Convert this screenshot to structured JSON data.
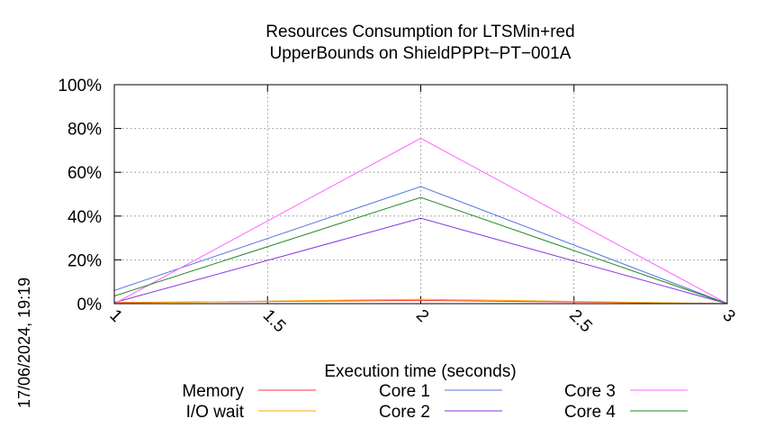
{
  "chart_data": {
    "type": "line",
    "title": [
      "Resources Consumption for LTSMin+red",
      "UpperBounds on ShieldPPPt−PT−001A"
    ],
    "xlabel": "Execution time (seconds)",
    "ylabel": "",
    "xlim": [
      1,
      3
    ],
    "ylim": [
      0,
      100
    ],
    "x_ticks": [
      "1",
      "1.5",
      "2",
      "2.5",
      "3"
    ],
    "y_ticks": [
      "0%",
      "20%",
      "40%",
      "60%",
      "80%",
      "100%"
    ],
    "x": [
      1,
      2,
      3
    ],
    "grid": true,
    "legend_position": "bottom",
    "timestamp": "17/06/2024, 19:19",
    "series": [
      {
        "name": "Memory",
        "color": "#ff3333",
        "values": [
          0.5,
          1.5,
          0
        ]
      },
      {
        "name": "I/O wait",
        "color": "#ffaa00",
        "values": [
          0.3,
          2.0,
          0
        ]
      },
      {
        "name": "Core 1",
        "color": "#5577dd",
        "values": [
          6,
          53.5,
          0
        ]
      },
      {
        "name": "Core 2",
        "color": "#8833dd",
        "values": [
          0.5,
          39,
          0
        ]
      },
      {
        "name": "Core 3",
        "color": "#ff66ff",
        "values": [
          0,
          75.5,
          0
        ]
      },
      {
        "name": "Core 4",
        "color": "#228822",
        "values": [
          3.5,
          48.5,
          0
        ]
      }
    ]
  }
}
